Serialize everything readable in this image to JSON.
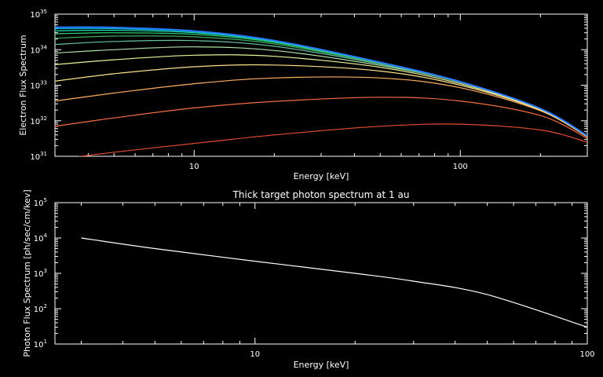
{
  "chart_data": [
    {
      "type": "line",
      "title": "",
      "xlabel": "Energy [keV]",
      "ylabel": "Electron Flux Spectrum",
      "xscale": "log",
      "yscale": "log",
      "xlim": [
        3.0,
        300
      ],
      "ylim": [
        1e+31,
        1e+35
      ],
      "x_ticks": [
        10,
        100
      ],
      "x_tick_labels": [
        "10",
        "100"
      ],
      "y_ticks": [
        1e+31,
        1e+32,
        1e+33,
        1e+34,
        1e+35
      ],
      "y_tick_labels": [
        {
          "base": "10",
          "exp": "31"
        },
        {
          "base": "10",
          "exp": "32"
        },
        {
          "base": "10",
          "exp": "33"
        },
        {
          "base": "10",
          "exp": "34"
        },
        {
          "base": "10",
          "exp": "35"
        }
      ],
      "x": [
        3,
        5,
        10,
        20,
        50,
        100,
        200,
        300
      ],
      "series": [
        {
          "color": "#e34a33",
          "values": [
            8e+30,
            1.3e+31,
            2.3e+31,
            4e+31,
            7e+31,
            8e+31,
            5.5e+31,
            2.5e+31
          ]
        },
        {
          "color": "#f46d43",
          "values": [
            7e+31,
            1.2e+32,
            2.3e+32,
            3.5e+32,
            4.6e+32,
            3.6e+32,
            1.4e+32,
            3.2e+31
          ]
        },
        {
          "color": "#fdae61",
          "values": [
            3.6e+32,
            6e+32,
            1.1e+33,
            1.6e+33,
            1.6e+33,
            8.5e+32,
            1.9e+32,
            3.5e+31
          ]
        },
        {
          "color": "#fee08b",
          "values": [
            1.3e+33,
            2.1e+33,
            3.3e+33,
            3.7e+33,
            2.5e+33,
            1e+33,
            2e+32,
            3.6e+31
          ]
        },
        {
          "color": "#e6f598",
          "values": [
            3.8e+33,
            5.2e+33,
            7e+33,
            6.5e+33,
            3.2e+33,
            1.1e+33,
            2.1e+32,
            3.7e+31
          ]
        },
        {
          "color": "#abdda4",
          "values": [
            8e+33,
            1e+34,
            1.2e+34,
            9.5e+33,
            3.6e+33,
            1.2e+33,
            2.15e+32,
            3.7e+31
          ]
        },
        {
          "color": "#66c2a5",
          "values": [
            1.4e+34,
            1.7e+34,
            1.8e+34,
            1.25e+34,
            3.9e+33,
            1.2e+33,
            2.2e+32,
            3.8e+31
          ]
        },
        {
          "color": "#41ab5d",
          "values": [
            2.1e+34,
            2.4e+34,
            2.3e+34,
            1.45e+34,
            4.1e+33,
            1.25e+33,
            2.2e+32,
            3.8e+31
          ]
        },
        {
          "color": "#2ecc71",
          "values": [
            2.8e+34,
            3e+34,
            2.7e+34,
            1.6e+34,
            4.2e+33,
            1.25e+33,
            2.2e+32,
            3.8e+31
          ]
        },
        {
          "color": "#1de9b6",
          "values": [
            3.4e+34,
            3.5e+34,
            3e+34,
            1.7e+34,
            4.3e+33,
            1.25e+33,
            2.2e+32,
            3.8e+31
          ]
        },
        {
          "color": "#00bcd4",
          "values": [
            3.9e+34,
            3.9e+34,
            3.2e+34,
            1.75e+34,
            4.35e+33,
            1.25e+33,
            2.2e+32,
            3.8e+31
          ]
        },
        {
          "color": "#2979ff",
          "values": [
            4.3e+34,
            4.2e+34,
            3.35e+34,
            1.8e+34,
            4.4e+33,
            1.25e+33,
            2.2e+32,
            3.8e+31
          ]
        }
      ]
    },
    {
      "type": "line",
      "title": "Thick target photon spectrum at 1 au",
      "xlabel": "Energy [keV]",
      "ylabel": "Photon Flux Spectrum [ph/sec/cm/kev]",
      "xscale": "log",
      "yscale": "log",
      "xlim": [
        2.5,
        100
      ],
      "ylim": [
        10,
        100000
      ],
      "x_ticks": [
        10,
        100
      ],
      "x_tick_labels": [
        "10",
        "100"
      ],
      "y_ticks": [
        10,
        100,
        1000,
        10000,
        100000
      ],
      "y_tick_labels": [
        {
          "base": "10",
          "exp": "1"
        },
        {
          "base": "10",
          "exp": "2"
        },
        {
          "base": "10",
          "exp": "3"
        },
        {
          "base": "10",
          "exp": "4"
        },
        {
          "base": "10",
          "exp": "5"
        }
      ],
      "x": [
        3,
        5,
        10,
        20,
        30,
        50,
        100
      ],
      "series": [
        {
          "color": "#ffffff",
          "values": [
            10000,
            5000,
            2200,
            1000,
            600,
            250,
            30
          ]
        }
      ]
    }
  ]
}
